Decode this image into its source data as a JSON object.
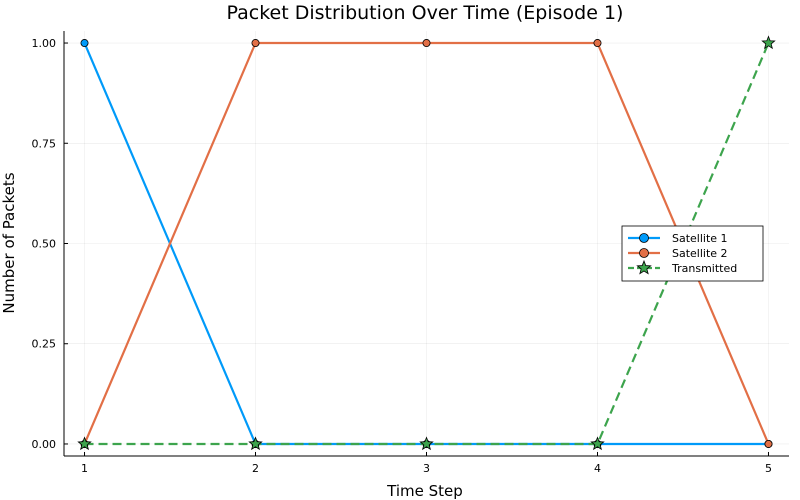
{
  "chart_data": {
    "type": "line",
    "title": "Packet Distribution Over Time (Episode 1)",
    "xlabel": "Time Step",
    "ylabel": "Number of Packets",
    "x": [
      1,
      2,
      3,
      4,
      5
    ],
    "xlim": [
      0.88,
      5.12
    ],
    "ylim": [
      -0.03,
      1.03
    ],
    "xticks": [
      1,
      2,
      3,
      4,
      5
    ],
    "xtick_labels": [
      "1",
      "2",
      "3",
      "4",
      "5"
    ],
    "yticks": [
      0,
      0.25,
      0.5,
      0.75,
      1
    ],
    "ytick_labels": [
      "0.00",
      "0.25",
      "0.50",
      "0.75",
      "1.00"
    ],
    "grid": true,
    "legend_position": "right",
    "series": [
      {
        "name": "Satellite 1",
        "values": [
          1,
          0,
          0,
          0,
          0
        ],
        "color": "#009af9",
        "marker": "circle",
        "dash": "solid"
      },
      {
        "name": "Satellite 2",
        "values": [
          0,
          1,
          1,
          1,
          0
        ],
        "color": "#e26f46",
        "marker": "circle",
        "dash": "solid"
      },
      {
        "name": "Transmitted",
        "values": [
          0,
          0,
          0,
          0,
          1
        ],
        "color": "#3da44d",
        "marker": "star",
        "dash": "dashed"
      }
    ]
  }
}
